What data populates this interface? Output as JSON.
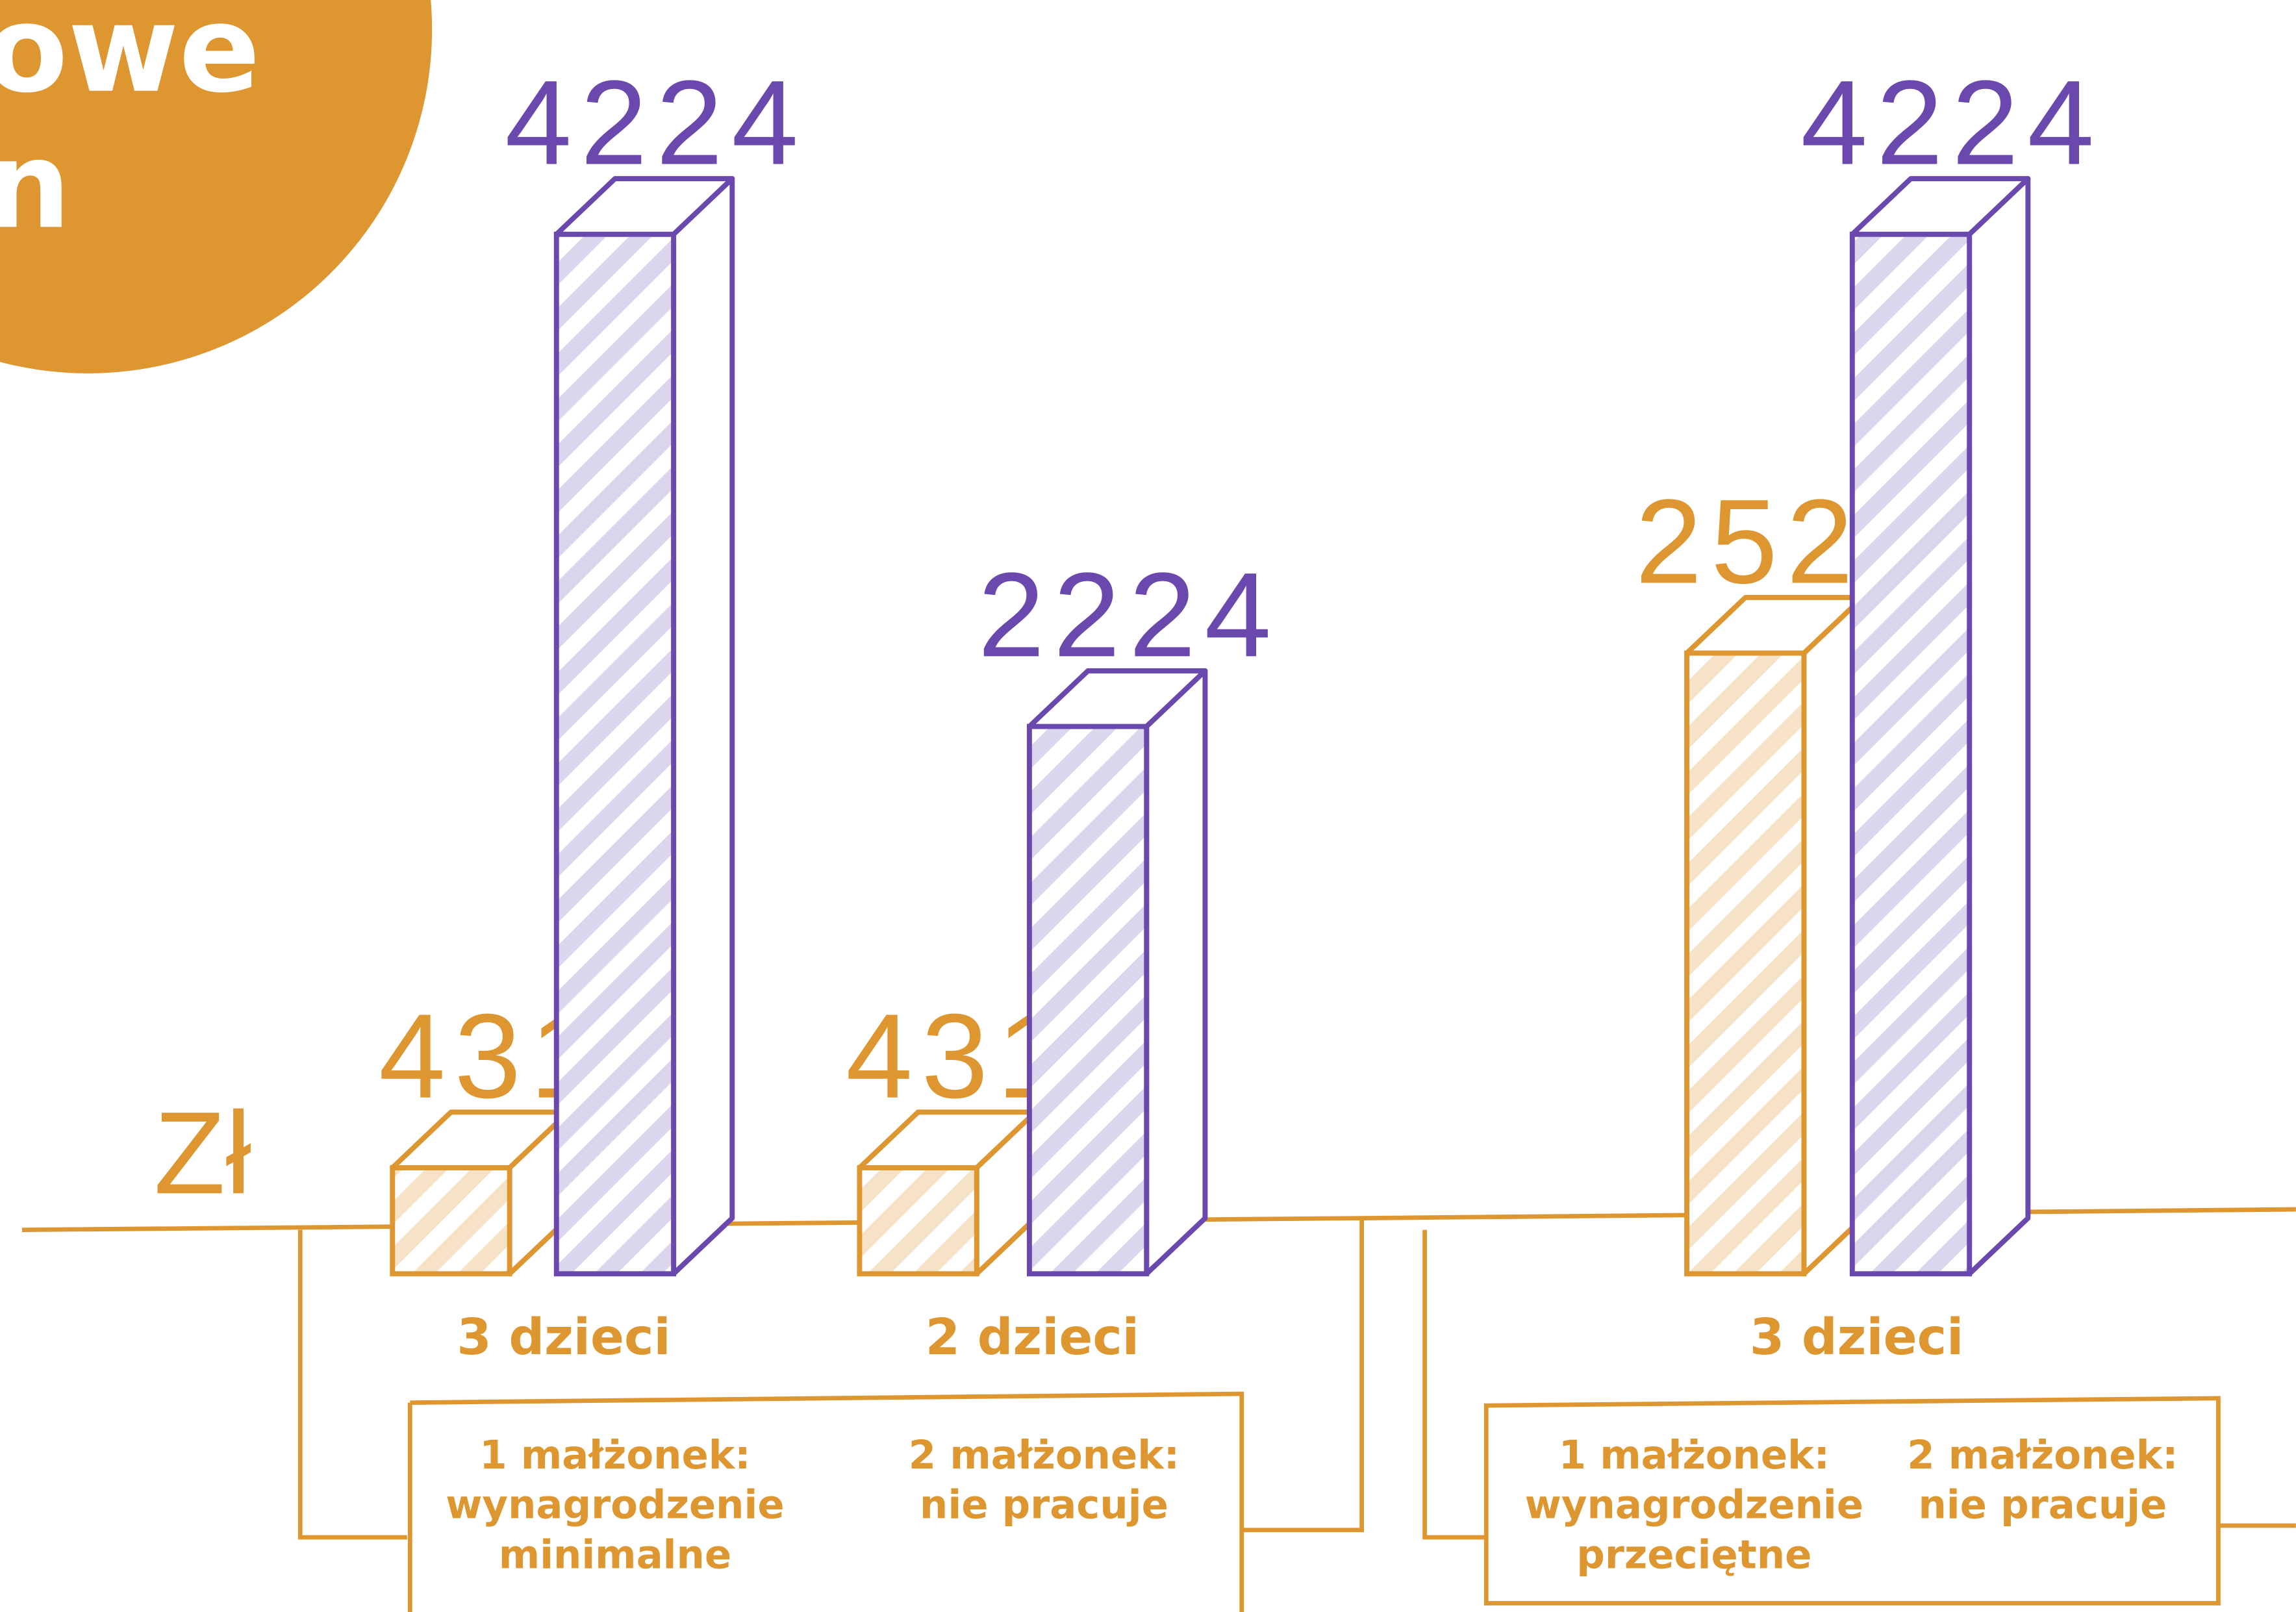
{
  "chart_data": {
    "type": "bar",
    "title_lines": [
      "owe",
      "n"
    ],
    "unit": "Zł",
    "categories": [
      "3 dzieci",
      "2 dzieci",
      "3 dzieci"
    ],
    "series": [
      {
        "color": "#dd9630",
        "values": [
          431,
          431,
          2522
        ]
      },
      {
        "color": "#6a48ad",
        "values": [
          4224,
          2224,
          4224
        ]
      }
    ],
    "conditions": [
      {
        "spouse1": [
          "1 małżonek:",
          "wynagrodzenie",
          "minimalne"
        ],
        "spouse2": [
          "2 małżonek:",
          "nie pracuje"
        ]
      },
      {
        "spouse1": [
          "1 małżonek:",
          "wynagrodzenie",
          "przeciętne"
        ],
        "spouse2": [
          "2 małżonek:",
          "nie pracuje"
        ]
      }
    ]
  }
}
